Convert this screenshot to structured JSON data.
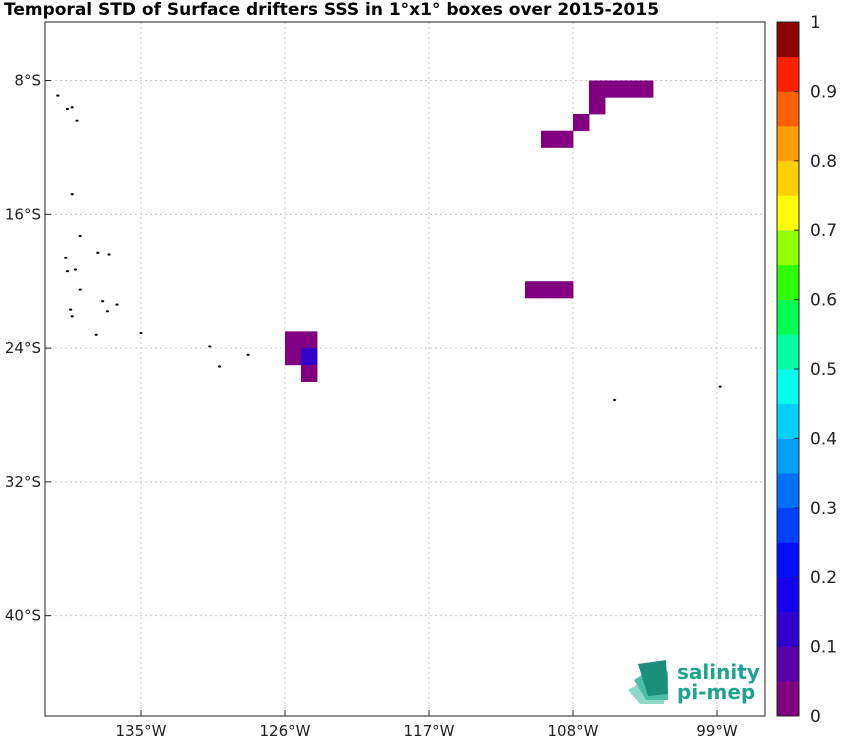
{
  "chart_data": {
    "type": "heatmap",
    "title": "Temporal STD of Surface drifters SSS in 1°x1° boxes over 2015-2015",
    "xlim": [
      -141,
      -96
    ],
    "ylim": [
      -46,
      -4.5
    ],
    "x_ticks": [
      -135,
      -126,
      -117,
      -108,
      -99
    ],
    "x_tick_labels": [
      "135°W",
      "126°W",
      "117°W",
      "108°W",
      "99°W"
    ],
    "y_ticks": [
      -8,
      -16,
      -24,
      -32,
      -40
    ],
    "y_tick_labels": [
      "8°S",
      "16°S",
      "24°S",
      "32°S",
      "40°S"
    ],
    "grid": true,
    "colorbar": {
      "range": [
        0,
        1
      ],
      "levels": 20,
      "ticks": [
        0,
        0.1,
        0.2,
        0.3,
        0.4,
        0.5,
        0.6,
        0.7,
        0.8,
        0.9,
        1
      ],
      "tick_labels": [
        "0",
        "0.1",
        "0.2",
        "0.3",
        "0.4",
        "0.5",
        "0.6",
        "0.7",
        "0.8",
        "0.9",
        "1"
      ],
      "colors": [
        "#800080",
        "#5a00a8",
        "#3200cc",
        "#1400ee",
        "#0010ff",
        "#0040ff",
        "#0070ff",
        "#00a0ff",
        "#00d0ff",
        "#00ffee",
        "#00ffa0",
        "#00ff50",
        "#30ff00",
        "#90ff00",
        "#ffff00",
        "#ffd000",
        "#ffa000",
        "#ff6000",
        "#ff2000",
        "#cc0000"
      ],
      "top_color": "#8b0000"
    },
    "cells": [
      {
        "lon": -106.5,
        "lat": -8.5,
        "value": 0.01
      },
      {
        "lon": -105.5,
        "lat": -8.5,
        "value": 0.01
      },
      {
        "lon": -104.5,
        "lat": -8.5,
        "value": 0.01
      },
      {
        "lon": -103.5,
        "lat": -8.5,
        "value": 0.01
      },
      {
        "lon": -106.5,
        "lat": -9.5,
        "value": 0.01
      },
      {
        "lon": -107.5,
        "lat": -10.5,
        "value": 0.01
      },
      {
        "lon": -109.5,
        "lat": -11.5,
        "value": 0.01
      },
      {
        "lon": -108.5,
        "lat": -11.5,
        "value": 0.01
      },
      {
        "lon": -110.5,
        "lat": -20.5,
        "value": 0.01
      },
      {
        "lon": -109.5,
        "lat": -20.5,
        "value": 0.01
      },
      {
        "lon": -108.5,
        "lat": -20.5,
        "value": 0.01
      },
      {
        "lon": -125.5,
        "lat": -23.5,
        "value": 0.03
      },
      {
        "lon": -124.5,
        "lat": -23.5,
        "value": 0.02
      },
      {
        "lon": -125.5,
        "lat": -24.5,
        "value": 0.04
      },
      {
        "lon": -124.5,
        "lat": -24.5,
        "value": 0.12
      },
      {
        "lon": -124.5,
        "lat": -25.5,
        "value": 0.03
      }
    ],
    "islands": [
      {
        "lon": -140.2,
        "lat": -8.9
      },
      {
        "lon": -139.6,
        "lat": -9.7
      },
      {
        "lon": -139.3,
        "lat": -9.6
      },
      {
        "lon": -139.0,
        "lat": -10.4
      },
      {
        "lon": -139.3,
        "lat": -14.8
      },
      {
        "lon": -138.8,
        "lat": -17.3
      },
      {
        "lon": -137.7,
        "lat": -18.3
      },
      {
        "lon": -137.0,
        "lat": -18.4
      },
      {
        "lon": -139.7,
        "lat": -18.6
      },
      {
        "lon": -139.1,
        "lat": -19.3
      },
      {
        "lon": -139.6,
        "lat": -19.4
      },
      {
        "lon": -138.8,
        "lat": -20.5
      },
      {
        "lon": -137.4,
        "lat": -21.2
      },
      {
        "lon": -136.5,
        "lat": -21.4
      },
      {
        "lon": -139.4,
        "lat": -21.7
      },
      {
        "lon": -137.1,
        "lat": -21.8
      },
      {
        "lon": -139.3,
        "lat": -22.1
      },
      {
        "lon": -137.8,
        "lat": -23.2
      },
      {
        "lon": -135.0,
        "lat": -23.1
      },
      {
        "lon": -130.7,
        "lat": -23.9
      },
      {
        "lon": -128.3,
        "lat": -24.4
      },
      {
        "lon": -130.1,
        "lat": -25.1
      },
      {
        "lon": -105.4,
        "lat": -27.1
      },
      {
        "lon": -98.8,
        "lat": -26.3
      }
    ]
  },
  "logo": {
    "line1": "salinity",
    "line2": "pi-mep"
  }
}
